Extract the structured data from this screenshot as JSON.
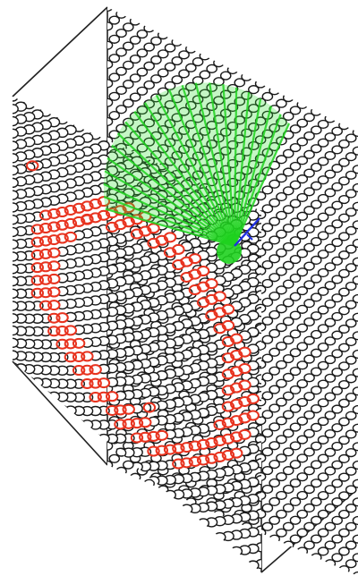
{
  "figure": {
    "kind": "3d-hexagonal-cell-grid-with-ray-fan",
    "colors": {
      "background": "#ffffff",
      "cell_outline": "#1a1a1a",
      "box_edge": "#222222",
      "highlight_ring": "#e8331f",
      "rays": "#1fd21f",
      "ray_fill": "#2ee02e",
      "axis": "#1f2fe0"
    },
    "back_panel": {
      "cols": 18,
      "rows": 48
    },
    "front_panel": {
      "cols": 15,
      "rows": 43
    },
    "ring": {
      "description_free": true,
      "ring_count": 1
    },
    "rays": {
      "count": 22,
      "origin_label": ""
    }
  }
}
